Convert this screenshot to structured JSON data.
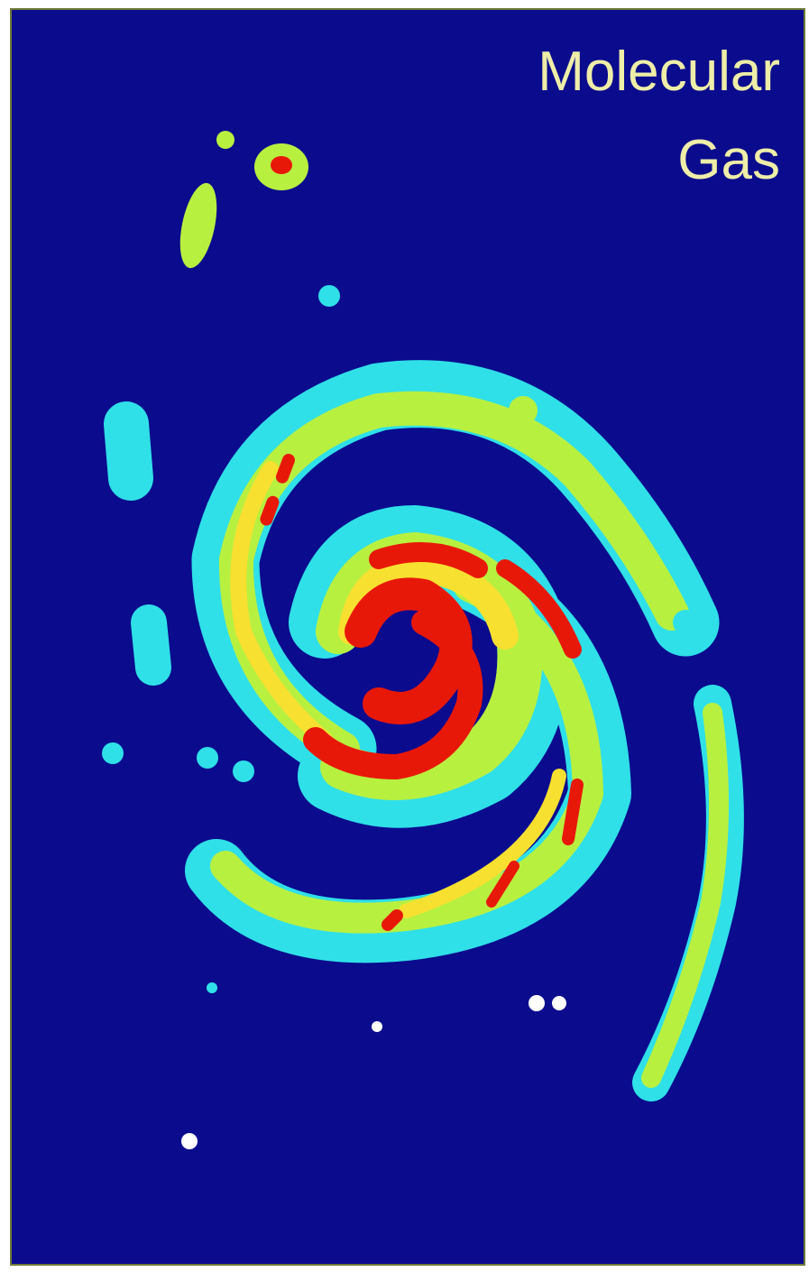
{
  "label": {
    "lines": [
      "Molecular",
      "Gas"
    ]
  }
}
